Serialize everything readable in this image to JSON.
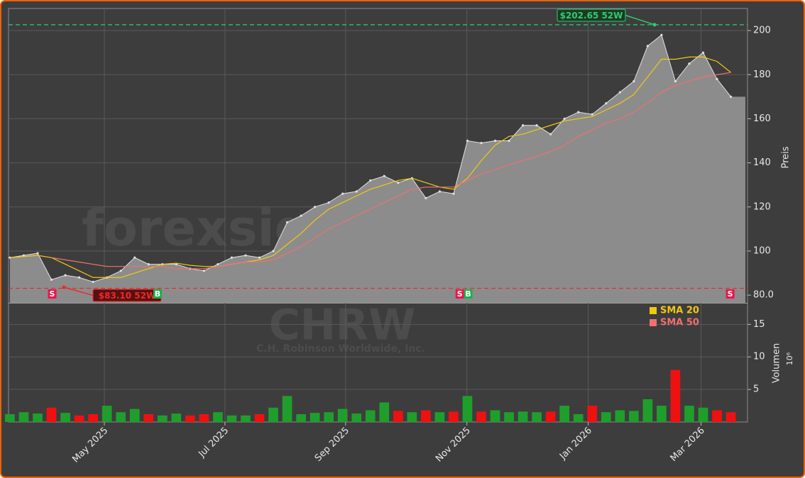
{
  "chart_data": {
    "type": "area",
    "color": "#8c8c8c",
    "line_color": "#e0e0e0",
    "grid": true,
    "categories": [
      null,
      null,
      null,
      null,
      null,
      null,
      null,
      null,
      null,
      null,
      null,
      null,
      null,
      null,
      null,
      null,
      null,
      null,
      null,
      null,
      null,
      null,
      null,
      null,
      null,
      null,
      null,
      null,
      null,
      null,
      null,
      null,
      null,
      null,
      null,
      null,
      null,
      null,
      null,
      null,
      null,
      null,
      null,
      null,
      null,
      null,
      null,
      null,
      null,
      null,
      null,
      null,
      null
    ],
    "xlim": [
      -0.1,
      53.2
    ],
    "xticks": [
      {
        "value": 6.81,
        "label": "May 2025"
      },
      {
        "value": 15.51,
        "label": "Jul 2025"
      },
      {
        "value": 24.21,
        "label": "Sep 2025"
      },
      {
        "value": 32.96,
        "label": "Nov 2025"
      },
      {
        "value": 41.71,
        "label": "Jan 2026"
      },
      {
        "value": 49.85,
        "label": "Mar 2026"
      }
    ],
    "values": [
      97,
      98,
      99,
      87,
      89,
      88,
      86,
      88,
      91,
      97,
      94,
      94,
      94,
      92,
      91,
      94,
      97,
      98,
      97,
      100,
      113,
      116,
      120,
      122,
      126,
      127,
      132,
      134,
      131,
      133,
      124,
      127,
      126,
      150,
      149,
      150,
      150,
      157,
      157,
      153,
      160,
      163,
      162,
      167,
      172,
      177,
      193,
      198,
      177,
      185,
      190,
      178,
      170
    ],
    "ylim": [
      76.5,
      210
    ],
    "yticks": [
      {
        "value": 80,
        "label": "80.0"
      },
      100,
      120,
      140,
      160,
      180,
      200
    ],
    "ylabel": "Preis",
    "series": [
      {
        "name": "SMA 20",
        "color": "#f2c811",
        "values": [
          97,
          97.5,
          98,
          97,
          94,
          91,
          88,
          88,
          88,
          90,
          92,
          94,
          94.5,
          93.5,
          93,
          93,
          94,
          95,
          96,
          98,
          103,
          108,
          114,
          119,
          122,
          125,
          128,
          130,
          132,
          133,
          131,
          129,
          128,
          133,
          141,
          148,
          152,
          153,
          155,
          157,
          159,
          160,
          161,
          164,
          167,
          171,
          179,
          187,
          187,
          188,
          188,
          186,
          181
        ]
      },
      {
        "name": "SMA 50",
        "color": "#f07070",
        "values": [
          null,
          null,
          null,
          97,
          96,
          95,
          94,
          93,
          93,
          93,
          93,
          93,
          92,
          92,
          92,
          93,
          94,
          95,
          95,
          96,
          99,
          102,
          106,
          110,
          113,
          116,
          119,
          122,
          125,
          128,
          129,
          129,
          129,
          132,
          135,
          137,
          139,
          141,
          143,
          145,
          148,
          152,
          155,
          158,
          160,
          163,
          167,
          172,
          175,
          177,
          179,
          180,
          181
        ]
      }
    ],
    "annotations": [
      {
        "text": "$202.65 52W",
        "value": 202.65,
        "color": "#2ecc71"
      },
      {
        "text": "$83.10 52W",
        "value": 83.1,
        "color": "#e82c2c"
      }
    ],
    "signals": [
      {
        "label": "S",
        "x": 3.05,
        "color": "#e8174a"
      },
      {
        "label": "B",
        "x": 10.65,
        "color": "#13b34a"
      },
      {
        "label": "S",
        "x": 32.45,
        "color": "#e8174a"
      },
      {
        "label": "B",
        "x": 33.05,
        "color": "#13b34a"
      },
      {
        "label": "S",
        "x": 51.95,
        "color": "#e8174a"
      }
    ],
    "watermarks": [
      "forexsignale.trade",
      "CHRW",
      "C.H. Robinson Worldwide, Inc."
    ],
    "volume": {
      "values": [
        1.2,
        1.5,
        1.3,
        2.2,
        1.4,
        1.0,
        1.2,
        2.5,
        1.5,
        2.0,
        1.2,
        1.0,
        1.3,
        1.0,
        1.2,
        1.5,
        1.0,
        1.0,
        1.2,
        2.2,
        4.0,
        1.2,
        1.4,
        1.5,
        2.0,
        1.3,
        1.8,
        3.0,
        1.7,
        1.5,
        1.8,
        1.5,
        1.6,
        4.0,
        1.6,
        1.8,
        1.5,
        1.6,
        1.5,
        1.6,
        2.5,
        1.2,
        2.5,
        1.5,
        1.8,
        1.7,
        3.5,
        2.5,
        8.0,
        2.5,
        2.2,
        1.8,
        1.5
      ],
      "up_color": "#1f9e2c",
      "down_color": "#ee1111",
      "ylim": [
        0,
        18.2
      ],
      "yticks": [
        5,
        10,
        15
      ],
      "ylabel": "Volumen",
      "scale_label": "10⁶"
    }
  }
}
